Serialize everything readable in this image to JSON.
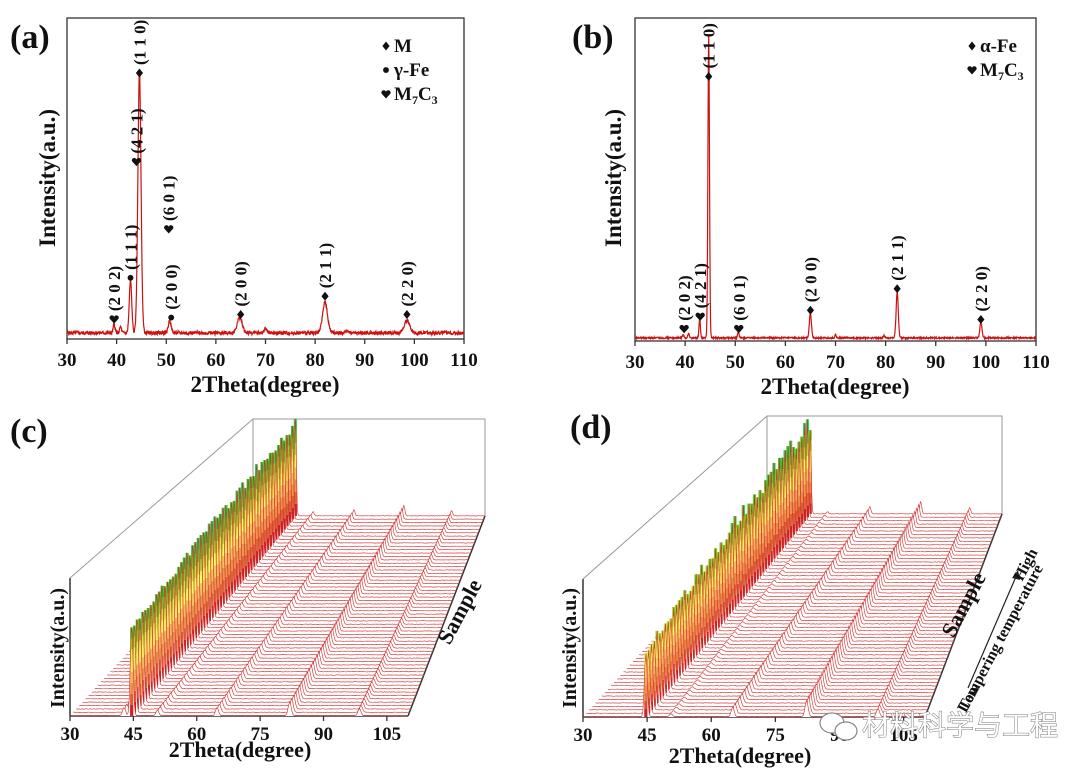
{
  "chart_data": [
    {
      "id": "a",
      "type": "line",
      "panel_label": "(a)",
      "xlabel": "2Theta(degree)",
      "ylabel": "Intensity(a.u.)",
      "xlim": [
        30,
        110
      ],
      "ylim": [
        0,
        1.05
      ],
      "xticks": [
        30,
        40,
        50,
        60,
        70,
        80,
        90,
        100,
        110
      ],
      "line_color": "#cc1111",
      "baseline": 0.02,
      "noise": 0.012,
      "peaks": [
        {
          "x": 39.5,
          "h": 0.03,
          "w": 0.25
        },
        {
          "x": 40.8,
          "h": 0.02,
          "w": 0.25
        },
        {
          "x": 42.8,
          "h": 0.17,
          "w": 0.35
        },
        {
          "x": 44.6,
          "h": 0.86,
          "w": 0.45
        },
        {
          "x": 50.7,
          "h": 0.04,
          "w": 0.4
        },
        {
          "x": 64.8,
          "h": 0.05,
          "w": 0.7
        },
        {
          "x": 70.0,
          "h": 0.015,
          "w": 0.4
        },
        {
          "x": 82.0,
          "h": 0.1,
          "w": 0.7
        },
        {
          "x": 86.5,
          "h": 0.008,
          "w": 0.4
        },
        {
          "x": 98.5,
          "h": 0.04,
          "w": 0.8
        }
      ],
      "legend": {
        "position": "top-right",
        "entries": [
          {
            "marker": "diamond",
            "label": "M",
            "sub": ""
          },
          {
            "marker": "circle",
            "label": "γ-Fe",
            "sub": ""
          },
          {
            "marker": "heart",
            "label": "M7C3",
            "sub": "7,3"
          }
        ]
      },
      "annotations": [
        {
          "x": 39.5,
          "y": 0.065,
          "marker": "heart",
          "text": "(2 0 2)"
        },
        {
          "x": 42.8,
          "y": 0.2,
          "marker": "circle",
          "text": "(1 1 1)"
        },
        {
          "x": 44.0,
          "y": 0.58,
          "marker": "heart",
          "text": "(4 2 1)"
        },
        {
          "x": 44.6,
          "y": 0.87,
          "marker": "diamond",
          "text": "(1 1 0)"
        },
        {
          "x": 51.0,
          "y": 0.07,
          "marker": "circle",
          "text": "(2 0 0)"
        },
        {
          "x": 50.5,
          "y": 0.36,
          "marker": "heart",
          "text": "(6 0 1)"
        },
        {
          "x": 65.0,
          "y": 0.08,
          "marker": "diamond",
          "text": "(2 0 0)"
        },
        {
          "x": 82.0,
          "y": 0.14,
          "marker": "diamond",
          "text": "(2 1 1)"
        },
        {
          "x": 98.5,
          "y": 0.08,
          "marker": "diamond",
          "text": "(2 2 0)"
        }
      ]
    },
    {
      "id": "b",
      "type": "line",
      "panel_label": "(b)",
      "xlabel": "2Theta(degree)",
      "ylabel": "Intensity(a.u.)",
      "xlim": [
        30,
        110
      ],
      "ylim": [
        0,
        1.05
      ],
      "xticks": [
        30,
        40,
        50,
        60,
        70,
        80,
        90,
        100,
        110
      ],
      "line_color": "#cc1111",
      "baseline": 0.01,
      "noise": 0.005,
      "peaks": [
        {
          "x": 39.6,
          "h": 0.01,
          "w": 0.2
        },
        {
          "x": 40.7,
          "h": 0.015,
          "w": 0.2
        },
        {
          "x": 42.9,
          "h": 0.06,
          "w": 0.2
        },
        {
          "x": 44.7,
          "h": 0.98,
          "w": 0.22
        },
        {
          "x": 50.6,
          "h": 0.02,
          "w": 0.2
        },
        {
          "x": 65.0,
          "h": 0.08,
          "w": 0.3
        },
        {
          "x": 70.0,
          "h": 0.01,
          "w": 0.2
        },
        {
          "x": 79.7,
          "h": 0.008,
          "w": 0.2
        },
        {
          "x": 82.3,
          "h": 0.15,
          "w": 0.3
        },
        {
          "x": 99.0,
          "h": 0.05,
          "w": 0.3
        }
      ],
      "legend": {
        "position": "top-right",
        "entries": [
          {
            "marker": "diamond",
            "label": "α-Fe",
            "sub": ""
          },
          {
            "marker": "heart",
            "label": "M7C3",
            "sub": "7,3"
          }
        ]
      },
      "annotations": [
        {
          "x": 39.8,
          "y": 0.04,
          "marker": "heart",
          "text": "(2 0 2)"
        },
        {
          "x": 43.0,
          "y": 0.08,
          "marker": "heart",
          "text": "(4 2 1)"
        },
        {
          "x": 44.7,
          "y": 0.86,
          "marker": "diamond",
          "text": "(1 1 0)"
        },
        {
          "x": 50.7,
          "y": 0.04,
          "marker": "heart",
          "text": "(6 0 1)"
        },
        {
          "x": 65.0,
          "y": 0.1,
          "marker": "diamond",
          "text": "(2 0 0)"
        },
        {
          "x": 82.3,
          "y": 0.17,
          "marker": "diamond",
          "text": "(2 1 1)"
        },
        {
          "x": 99.0,
          "y": 0.07,
          "marker": "diamond",
          "text": "(2 2 0)"
        }
      ]
    },
    {
      "id": "c",
      "type": "waterfall",
      "panel_label": "(c)",
      "xlabel": "2Theta(degree)",
      "ylabel": "Intensity(a.u.)",
      "zlabel": "Sample",
      "xlim": [
        30,
        110
      ],
      "xticks": [
        30,
        45,
        60,
        75,
        90,
        105
      ],
      "n_series": 60,
      "colormap": [
        "#cc2222",
        "#e87a3a",
        "#f7b060",
        "#ffff66",
        "#99dd33",
        "#33cc33",
        "#66ddff",
        "#3399ff",
        "#2222cc"
      ],
      "main_peak": {
        "x": 44.6,
        "h_range": [
          0.55,
          0.95
        ]
      },
      "minor_peaks": [
        {
          "x": 42.8,
          "h": 0.06
        },
        {
          "x": 50.7,
          "h": 0.04
        },
        {
          "x": 64.8,
          "h": 0.06
        },
        {
          "x": 82.0,
          "h": 0.1
        },
        {
          "x": 98.5,
          "h": 0.05
        }
      ]
    },
    {
      "id": "d",
      "type": "waterfall",
      "panel_label": "(d)",
      "xlabel": "2Theta(degree)",
      "ylabel": "Intensity(a.u.)",
      "zlabel": "Sample",
      "xlim": [
        30,
        110
      ],
      "xticks": [
        30,
        45,
        60,
        75,
        90,
        105
      ],
      "n_series": 60,
      "colormap": [
        "#cc2222",
        "#e87a3a",
        "#f7b060",
        "#ffff66",
        "#99dd33",
        "#33cc33",
        "#66ddff",
        "#3399ff",
        "#2222cc"
      ],
      "main_peak": {
        "x": 44.7,
        "h_range": [
          0.3,
          0.9
        ]
      },
      "minor_peaks": [
        {
          "x": 50.6,
          "h": 0.02
        },
        {
          "x": 65.0,
          "h": 0.07
        },
        {
          "x": 82.3,
          "h": 0.12
        },
        {
          "x": 99.0,
          "h": 0.06
        }
      ],
      "temperature_arrow": {
        "low": "Low",
        "high": "High",
        "label": "Tempering temperature"
      }
    }
  ],
  "watermark": "材料科学与工程"
}
